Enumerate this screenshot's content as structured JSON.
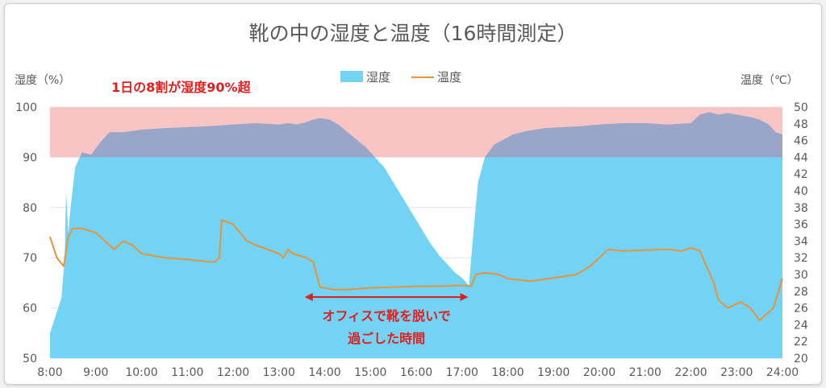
{
  "chart_data": {
    "type": "area",
    "title": "靴の中の湿度と温度（16時間測定）",
    "ylabel_left": "湿度（%）",
    "ylabel_right": "温度（℃）",
    "legend": [
      {
        "name": "湿度",
        "color": "#73d3f5",
        "kind": "area"
      },
      {
        "name": "温度",
        "color": "#e8923a",
        "kind": "line"
      }
    ],
    "x_ticks": [
      "8:00",
      "9:00",
      "10:00",
      "11:00",
      "12:00",
      "13:00",
      "14:00",
      "15:00",
      "16:00",
      "17:00",
      "18:00",
      "19:00",
      "20:00",
      "21:00",
      "22:00",
      "23:00",
      "24:00"
    ],
    "y_left": {
      "min": 50,
      "max": 100,
      "ticks": [
        50,
        60,
        70,
        80,
        90,
        100
      ]
    },
    "y_right": {
      "min": 20,
      "max": 50,
      "ticks": [
        20,
        22,
        24,
        26,
        28,
        30,
        32,
        34,
        36,
        38,
        40,
        42,
        44,
        46,
        48,
        50
      ]
    },
    "highlight_band": {
      "from": 90,
      "to": 100,
      "color": "#f9c4c4"
    },
    "series": [
      {
        "name": "湿度",
        "axis": "left",
        "x": [
          8.0,
          8.25,
          8.32,
          8.35,
          8.4,
          8.45,
          8.55,
          8.7,
          8.9,
          9.1,
          9.3,
          9.6,
          10.0,
          10.5,
          11.0,
          11.5,
          12.0,
          12.5,
          13.0,
          13.2,
          13.4,
          13.6,
          13.75,
          13.9,
          14.1,
          14.3,
          14.5,
          14.7,
          14.9,
          15.1,
          15.3,
          15.5,
          15.7,
          15.9,
          16.1,
          16.3,
          16.5,
          16.7,
          16.85,
          17.0,
          17.15,
          17.25,
          17.35,
          17.5,
          17.7,
          17.9,
          18.1,
          18.4,
          18.8,
          19.2,
          19.6,
          20.0,
          20.5,
          21.0,
          21.5,
          22.0,
          22.2,
          22.4,
          22.6,
          22.8,
          23.0,
          23.3,
          23.5,
          23.7,
          23.85,
          24.0
        ],
        "y": [
          55.0,
          62.0,
          70.0,
          83.0,
          75.0,
          80.0,
          88.0,
          91.0,
          90.5,
          93.0,
          95.0,
          95.0,
          95.5,
          95.8,
          96.0,
          96.2,
          96.5,
          96.8,
          96.5,
          96.8,
          96.5,
          97.0,
          97.5,
          97.8,
          97.5,
          96.5,
          95.0,
          93.5,
          92.0,
          90.0,
          88.0,
          85.0,
          82.0,
          79.0,
          76.0,
          73.0,
          70.5,
          68.5,
          67.0,
          66.0,
          64.5,
          75.0,
          85.0,
          90.0,
          92.5,
          93.5,
          94.5,
          95.2,
          95.8,
          96.0,
          96.2,
          96.5,
          96.8,
          96.8,
          96.5,
          96.8,
          98.5,
          99.0,
          98.5,
          98.8,
          98.5,
          98.0,
          97.5,
          96.5,
          95.0,
          94.5
        ]
      },
      {
        "name": "温度",
        "axis": "right",
        "x": [
          8.0,
          8.15,
          8.3,
          8.4,
          8.5,
          8.7,
          9.0,
          9.2,
          9.4,
          9.6,
          9.8,
          10.0,
          10.5,
          11.0,
          11.5,
          11.6,
          11.7,
          11.75,
          12.0,
          12.3,
          12.5,
          13.0,
          13.1,
          13.2,
          13.3,
          13.6,
          13.75,
          13.9,
          14.2,
          14.5,
          15.0,
          15.5,
          16.0,
          16.5,
          17.0,
          17.2,
          17.3,
          17.5,
          17.8,
          18.0,
          18.5,
          19.0,
          19.5,
          19.8,
          20.0,
          20.2,
          20.5,
          21.0,
          21.5,
          21.8,
          22.0,
          22.2,
          22.3,
          22.5,
          22.6,
          22.8,
          23.0,
          23.1,
          23.3,
          23.5,
          23.6,
          23.8,
          24.0
        ],
        "y": [
          34.5,
          32.0,
          31.0,
          34.5,
          35.5,
          35.5,
          35.0,
          34.0,
          33.0,
          34.0,
          33.5,
          32.5,
          32.0,
          31.8,
          31.5,
          31.5,
          32.0,
          36.5,
          36.0,
          34.0,
          33.5,
          32.5,
          32.0,
          33.0,
          32.5,
          32.0,
          31.5,
          28.5,
          28.2,
          28.2,
          28.4,
          28.5,
          28.6,
          28.6,
          28.7,
          28.6,
          30.0,
          30.2,
          30.0,
          29.5,
          29.2,
          29.6,
          30.0,
          31.0,
          32.0,
          33.0,
          32.8,
          32.9,
          33.0,
          32.8,
          33.2,
          32.8,
          31.5,
          29.0,
          27.0,
          26.0,
          26.5,
          26.7,
          26.0,
          24.5,
          25.0,
          26.0,
          29.5
        ]
      }
    ],
    "annotations": {
      "top_note": "1日の8割が湿度90%超",
      "arrow_label_line1": "オフィスで靴を脱いで",
      "arrow_label_line2": "過ごした時間",
      "arrow_from_x": 13.6,
      "arrow_to_x": 17.1
    }
  }
}
